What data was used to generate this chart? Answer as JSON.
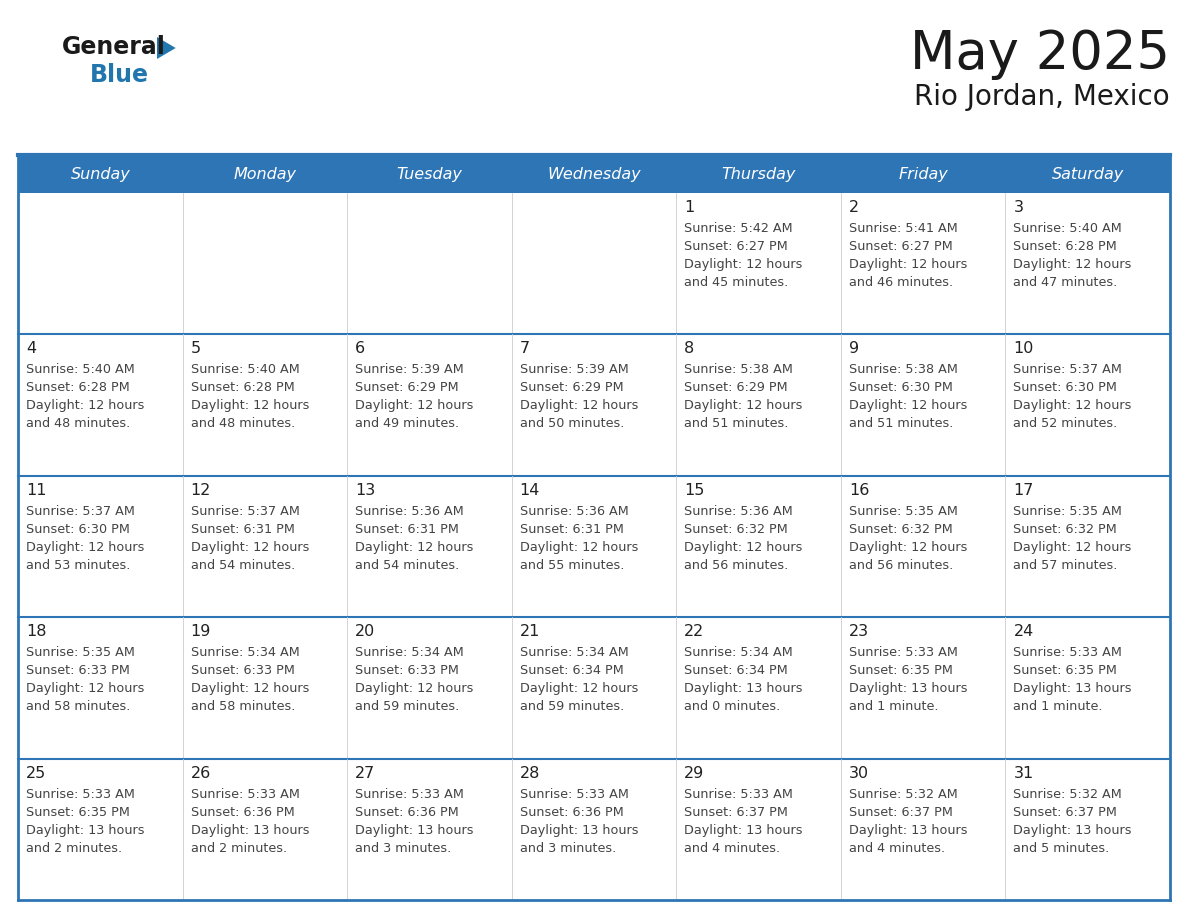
{
  "title": "May 2025",
  "subtitle": "Rio Jordan, Mexico",
  "header_bg": "#2E75B6",
  "header_text_color": "#FFFFFF",
  "day_names": [
    "Sunday",
    "Monday",
    "Tuesday",
    "Wednesday",
    "Thursday",
    "Friday",
    "Saturday"
  ],
  "cell_bg": "#FFFFFF",
  "cell_border_color": "#2E75B6",
  "row_divider_color": "#2E75B6",
  "text_color": "#444444",
  "number_color": "#222222",
  "logo_black": "#1a1a1a",
  "logo_blue": "#2176AE",
  "calendar": [
    [
      null,
      null,
      null,
      null,
      {
        "day": 1,
        "sunrise": "5:42 AM",
        "sunset": "6:27 PM",
        "daylight": "12 hours and 45 minutes."
      },
      {
        "day": 2,
        "sunrise": "5:41 AM",
        "sunset": "6:27 PM",
        "daylight": "12 hours and 46 minutes."
      },
      {
        "day": 3,
        "sunrise": "5:40 AM",
        "sunset": "6:28 PM",
        "daylight": "12 hours and 47 minutes."
      }
    ],
    [
      {
        "day": 4,
        "sunrise": "5:40 AM",
        "sunset": "6:28 PM",
        "daylight": "12 hours and 48 minutes."
      },
      {
        "day": 5,
        "sunrise": "5:40 AM",
        "sunset": "6:28 PM",
        "daylight": "12 hours and 48 minutes."
      },
      {
        "day": 6,
        "sunrise": "5:39 AM",
        "sunset": "6:29 PM",
        "daylight": "12 hours and 49 minutes."
      },
      {
        "day": 7,
        "sunrise": "5:39 AM",
        "sunset": "6:29 PM",
        "daylight": "12 hours and 50 minutes."
      },
      {
        "day": 8,
        "sunrise": "5:38 AM",
        "sunset": "6:29 PM",
        "daylight": "12 hours and 51 minutes."
      },
      {
        "day": 9,
        "sunrise": "5:38 AM",
        "sunset": "6:30 PM",
        "daylight": "12 hours and 51 minutes."
      },
      {
        "day": 10,
        "sunrise": "5:37 AM",
        "sunset": "6:30 PM",
        "daylight": "12 hours and 52 minutes."
      }
    ],
    [
      {
        "day": 11,
        "sunrise": "5:37 AM",
        "sunset": "6:30 PM",
        "daylight": "12 hours and 53 minutes."
      },
      {
        "day": 12,
        "sunrise": "5:37 AM",
        "sunset": "6:31 PM",
        "daylight": "12 hours and 54 minutes."
      },
      {
        "day": 13,
        "sunrise": "5:36 AM",
        "sunset": "6:31 PM",
        "daylight": "12 hours and 54 minutes."
      },
      {
        "day": 14,
        "sunrise": "5:36 AM",
        "sunset": "6:31 PM",
        "daylight": "12 hours and 55 minutes."
      },
      {
        "day": 15,
        "sunrise": "5:36 AM",
        "sunset": "6:32 PM",
        "daylight": "12 hours and 56 minutes."
      },
      {
        "day": 16,
        "sunrise": "5:35 AM",
        "sunset": "6:32 PM",
        "daylight": "12 hours and 56 minutes."
      },
      {
        "day": 17,
        "sunrise": "5:35 AM",
        "sunset": "6:32 PM",
        "daylight": "12 hours and 57 minutes."
      }
    ],
    [
      {
        "day": 18,
        "sunrise": "5:35 AM",
        "sunset": "6:33 PM",
        "daylight": "12 hours and 58 minutes."
      },
      {
        "day": 19,
        "sunrise": "5:34 AM",
        "sunset": "6:33 PM",
        "daylight": "12 hours and 58 minutes."
      },
      {
        "day": 20,
        "sunrise": "5:34 AM",
        "sunset": "6:33 PM",
        "daylight": "12 hours and 59 minutes."
      },
      {
        "day": 21,
        "sunrise": "5:34 AM",
        "sunset": "6:34 PM",
        "daylight": "12 hours and 59 minutes."
      },
      {
        "day": 22,
        "sunrise": "5:34 AM",
        "sunset": "6:34 PM",
        "daylight": "13 hours and 0 minutes."
      },
      {
        "day": 23,
        "sunrise": "5:33 AM",
        "sunset": "6:35 PM",
        "daylight": "13 hours and 1 minute."
      },
      {
        "day": 24,
        "sunrise": "5:33 AM",
        "sunset": "6:35 PM",
        "daylight": "13 hours and 1 minute."
      }
    ],
    [
      {
        "day": 25,
        "sunrise": "5:33 AM",
        "sunset": "6:35 PM",
        "daylight": "13 hours and 2 minutes."
      },
      {
        "day": 26,
        "sunrise": "5:33 AM",
        "sunset": "6:36 PM",
        "daylight": "13 hours and 2 minutes."
      },
      {
        "day": 27,
        "sunrise": "5:33 AM",
        "sunset": "6:36 PM",
        "daylight": "13 hours and 3 minutes."
      },
      {
        "day": 28,
        "sunrise": "5:33 AM",
        "sunset": "6:36 PM",
        "daylight": "13 hours and 3 minutes."
      },
      {
        "day": 29,
        "sunrise": "5:33 AM",
        "sunset": "6:37 PM",
        "daylight": "13 hours and 4 minutes."
      },
      {
        "day": 30,
        "sunrise": "5:32 AM",
        "sunset": "6:37 PM",
        "daylight": "13 hours and 4 minutes."
      },
      {
        "day": 31,
        "sunrise": "5:32 AM",
        "sunset": "6:37 PM",
        "daylight": "13 hours and 5 minutes."
      }
    ]
  ]
}
